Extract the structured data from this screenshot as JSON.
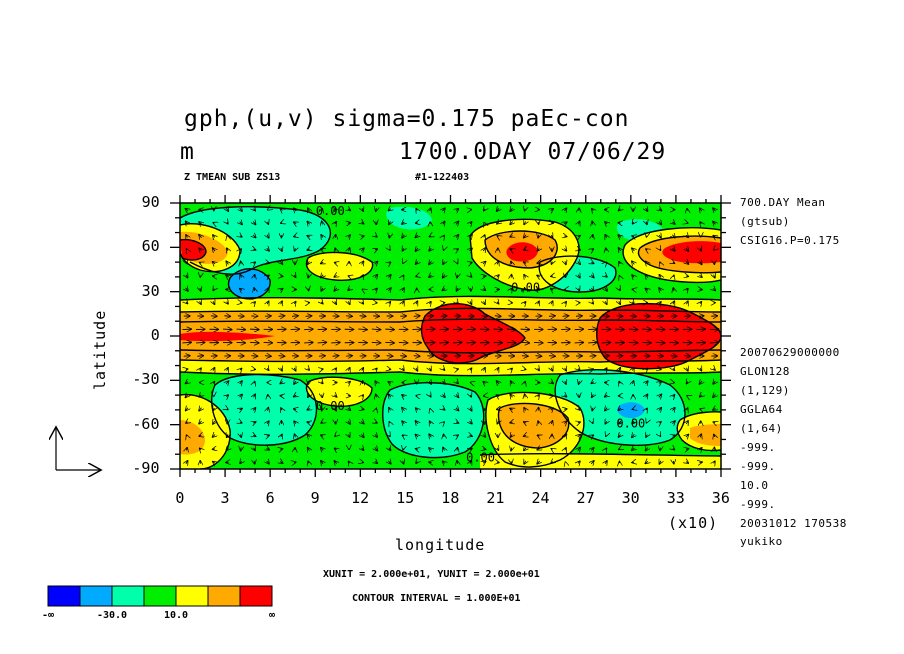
{
  "header": {
    "title_line1": "gph,(u,v) sigma=0.175 paEc-con",
    "title_unit": "m",
    "title_time": "1700.0DAY 07/06/29",
    "sub_left": "Z TMEAN SUB ZS13",
    "sub_right": "#1-122403"
  },
  "side_info": [
    "700.DAY Mean",
    "(gtsub)",
    "CSIG16.P=0.175",
    "20070629000000",
    "GLON128",
    "(1,129)",
    "GGLA64",
    "(1,64)",
    "-999.",
    "-999.",
    "10.0",
    "-999.",
    "20031012 170538",
    "yukiko"
  ],
  "footer": {
    "units": "XUNIT = 2.000e+01, YUNIT = 2.000e+01",
    "interval": "CONTOUR INTERVAL = 1.000E+01"
  },
  "colorbar": {
    "colors": [
      "#0000ff",
      "#00aaff",
      "#00ffaa",
      "#00ee00",
      "#ffff00",
      "#ffaa00",
      "#ff0000"
    ],
    "labels": [
      "-∞",
      "-30.0",
      "10.0",
      "∞"
    ]
  },
  "chart_data": {
    "type": "heatmap",
    "title": "gph,(u,v) sigma=0.175 paEc-con",
    "xlabel": "longitude",
    "ylabel": "latitude",
    "x_multiplier": "(x10)",
    "xlim": [
      0,
      36
    ],
    "ylim": [
      -90,
      90
    ],
    "x_ticks": [
      "0",
      "3",
      "6",
      "9",
      "12",
      "15",
      "18",
      "21",
      "24",
      "27",
      "30",
      "33",
      "36"
    ],
    "y_ticks": [
      "90",
      "60",
      "30",
      "0",
      "-30",
      "-60",
      "-90"
    ],
    "contour_labels": [
      {
        "text": "0.00",
        "x": 10,
        "y": 82
      },
      {
        "text": "0.00",
        "x": 23,
        "y": 30
      },
      {
        "text": "0.00",
        "x": 10,
        "y": -50
      },
      {
        "text": "0.00",
        "x": 20,
        "y": -85
      },
      {
        "text": "0.00",
        "x": 30,
        "y": -62
      }
    ],
    "contour_interval": 10,
    "levels": [
      -40,
      -30,
      -20,
      -10,
      0,
      10,
      20
    ],
    "features": [
      {
        "kind": "high",
        "x": 1,
        "y": 57,
        "value": 40
      },
      {
        "kind": "high",
        "x": 22,
        "y": 57,
        "value": 40
      },
      {
        "kind": "high",
        "x": 35,
        "y": 57,
        "value": 40
      },
      {
        "kind": "high",
        "x": 18,
        "y": 5,
        "value": 40
      },
      {
        "kind": "high",
        "x": 31,
        "y": 5,
        "value": 40
      },
      {
        "kind": "low",
        "x": 4.5,
        "y": 35,
        "value": -35
      },
      {
        "kind": "low",
        "x": 30,
        "y": -50,
        "value": -35
      }
    ],
    "grid": false
  }
}
